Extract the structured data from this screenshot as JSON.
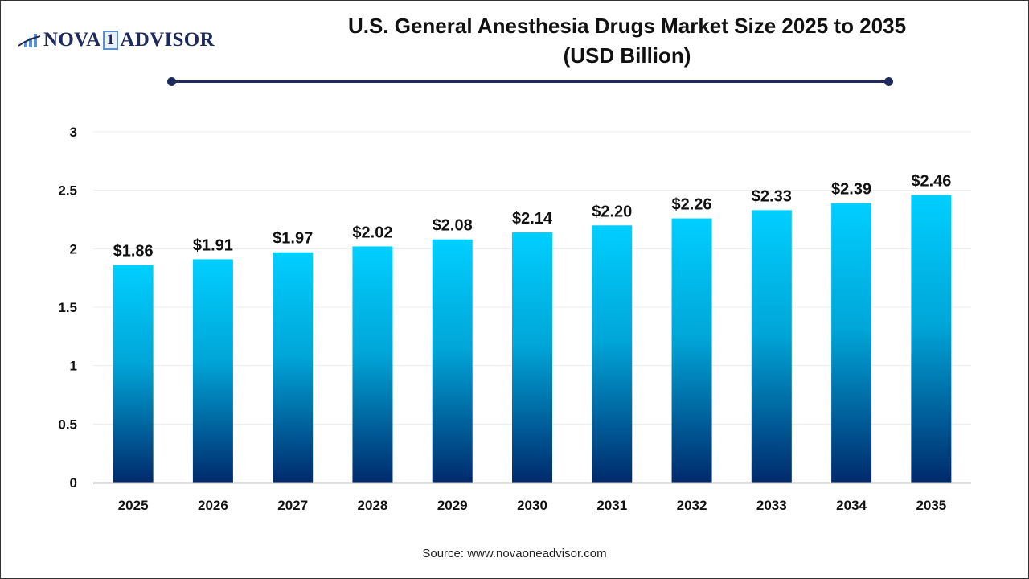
{
  "logo": {
    "text_left": "NOVA",
    "text_mark": "1",
    "text_right": "ADVISOR"
  },
  "title_line1": "U.S. General Anesthesia Drugs Market Size 2025 to 2035",
  "title_line2": "(USD Billion)",
  "source": "Source: www.novaoneadvisor.com",
  "colors": {
    "bar_top": "#00cfff",
    "bar_bottom": "#002a6c",
    "accent": "#1f2a5c"
  },
  "chart_data": {
    "type": "bar",
    "title": "U.S. General Anesthesia Drugs Market Size 2025 to 2035 (USD Billion)",
    "categories": [
      "2025",
      "2026",
      "2027",
      "2028",
      "2029",
      "2030",
      "2031",
      "2032",
      "2033",
      "2034",
      "2035"
    ],
    "values": [
      1.86,
      1.91,
      1.97,
      2.02,
      2.08,
      2.14,
      2.2,
      2.26,
      2.33,
      2.39,
      2.46
    ],
    "data_labels": [
      "$1.86",
      "$1.91",
      "$1.97",
      "$2.02",
      "$2.08",
      "$2.14",
      "$2.20",
      "$2.26",
      "$2.33",
      "$2.39",
      "$2.46"
    ],
    "yticks": [
      "0",
      "0.5",
      "1",
      "1.5",
      "2",
      "2.5",
      "3"
    ],
    "ylim": [
      0,
      3
    ],
    "grid": true,
    "xlabel": "",
    "ylabel": ""
  }
}
